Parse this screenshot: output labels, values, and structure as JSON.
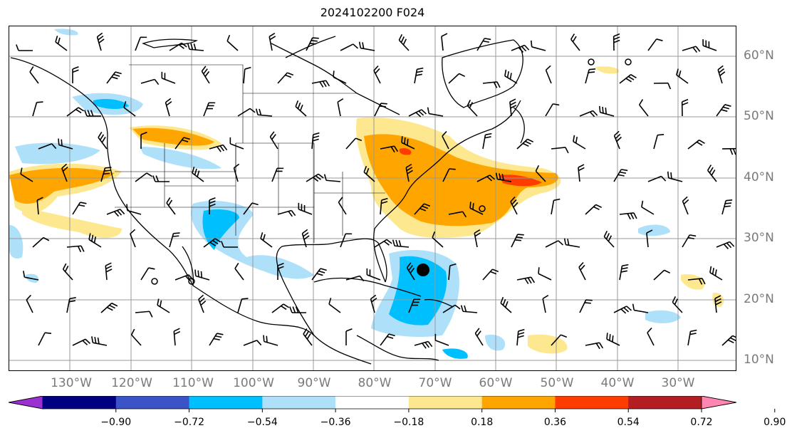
{
  "title": "2024102200 F024",
  "lon_labels": [
    "130°W",
    "120°W",
    "110°W",
    "100°W",
    "90°W",
    "80°W",
    "70°W",
    "60°W",
    "50°W",
    "40°W",
    "30°W"
  ],
  "lat_labels": [
    "60°N",
    "50°N",
    "40°N",
    "30°N",
    "20°N",
    "10°N"
  ],
  "colorbar": {
    "ticks": [
      "−0.90",
      "−0.72",
      "−0.54",
      "−0.36",
      "−0.18",
      "0.18",
      "0.36",
      "0.54",
      "0.72",
      "0.90"
    ],
    "colors": [
      "#9b30d0",
      "#000080",
      "#3a54c8",
      "#00bfff",
      "#aee0fa",
      "#ffffff",
      "#fde88f",
      "#ffa500",
      "#ff3c00",
      "#b21e22",
      "#ff85b2"
    ]
  }
}
